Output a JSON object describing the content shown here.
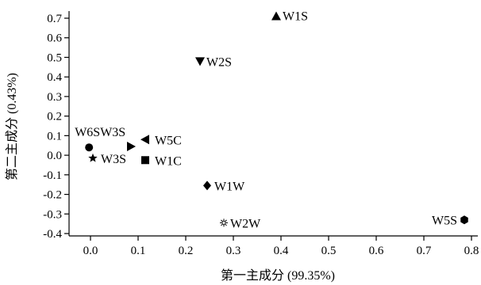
{
  "chart_data": {
    "type": "scatter",
    "title": "",
    "xlabel": "第一主成分 (99.35%)",
    "ylabel": "第二主成分 (0.43%)",
    "xlim": [
      -0.1,
      0.82
    ],
    "ylim": [
      -0.4,
      0.77
    ],
    "x_ticks": [
      "0.0",
      "0.1",
      "0.2",
      "0.3",
      "0.4",
      "0.5",
      "0.6",
      "0.7",
      "0.8"
    ],
    "y_ticks": [
      "-0.4",
      "-0.3",
      "-0.2",
      "-0.1",
      "0.0",
      "0.1",
      "0.2",
      "0.3",
      "0.4",
      "0.5",
      "0.6",
      "0.7"
    ],
    "grid": false,
    "points": [
      {
        "label": "W1S",
        "x": 0.39,
        "y": 0.71,
        "marker": "triangle-up"
      },
      {
        "label": "W2S",
        "x": 0.23,
        "y": 0.48,
        "marker": "triangle-down"
      },
      {
        "label": "W6S",
        "x": -0.003,
        "y": 0.04,
        "marker": "circle"
      },
      {
        "label": "W3S",
        "x": 0.085,
        "y": 0.045,
        "marker": "triangle-right"
      },
      {
        "label": "W5C",
        "x": 0.115,
        "y": 0.08,
        "marker": "triangle-left"
      },
      {
        "label": "W3S",
        "x": 0.005,
        "y": -0.015,
        "marker": "star"
      },
      {
        "label": "W1C",
        "x": 0.115,
        "y": -0.025,
        "marker": "square"
      },
      {
        "label": "W1W",
        "x": 0.245,
        "y": -0.155,
        "marker": "diamond"
      },
      {
        "label": "W2W",
        "x": 0.28,
        "y": -0.345,
        "marker": "asterisk"
      },
      {
        "label": "W5S",
        "x": 0.785,
        "y": -0.33,
        "marker": "hexagon"
      }
    ],
    "label_text": {
      "W6SW3S": "W6SW3S"
    }
  }
}
